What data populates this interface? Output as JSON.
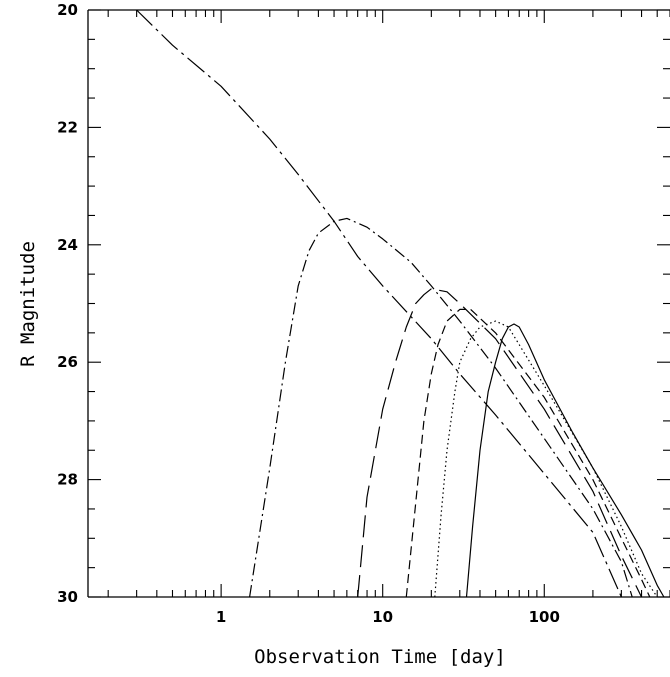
{
  "chart_data": {
    "type": "line",
    "title": "",
    "xlabel": "Observation Time [day]",
    "ylabel": "R Magnitude",
    "xscale": "log",
    "xlim": [
      0.15,
      600
    ],
    "ylim": [
      20,
      30
    ],
    "y_inverted": true,
    "grid": false,
    "legend": "none",
    "x_ticks": [
      1,
      10,
      100
    ],
    "x_tick_labels": [
      "1",
      "10",
      "100"
    ],
    "y_ticks": [
      20,
      22,
      24,
      26,
      28,
      30
    ],
    "y_tick_labels": [
      "20",
      "22",
      "24",
      "26",
      "28",
      "30"
    ],
    "series": [
      {
        "line_style": "long-dash-dot",
        "x": [
          0.3,
          0.5,
          1,
          2,
          3,
          5,
          7,
          10,
          20,
          30,
          50,
          100,
          200,
          300
        ],
        "y": [
          20.0,
          20.6,
          21.3,
          22.2,
          22.8,
          23.6,
          24.2,
          24.7,
          25.6,
          26.2,
          26.9,
          27.9,
          28.9,
          30.0
        ]
      },
      {
        "line_style": "dash-dot",
        "x": [
          1.5,
          2,
          2.5,
          3,
          3.5,
          4,
          5,
          6,
          8,
          10,
          15,
          20,
          30,
          50,
          100,
          200,
          300,
          350
        ],
        "y": [
          30.0,
          27.8,
          26.0,
          24.7,
          24.1,
          23.8,
          23.6,
          23.55,
          23.7,
          23.9,
          24.3,
          24.7,
          25.3,
          26.1,
          27.3,
          28.5,
          29.4,
          30.0
        ]
      },
      {
        "line_style": "long-dash",
        "x": [
          7,
          8,
          10,
          12,
          14,
          16,
          18,
          20,
          25,
          30,
          50,
          100,
          200,
          300,
          400
        ],
        "y": [
          30.0,
          28.3,
          26.8,
          26.0,
          25.4,
          25.0,
          24.85,
          24.75,
          24.8,
          25.0,
          25.6,
          26.8,
          28.2,
          29.3,
          30.0
        ]
      },
      {
        "line_style": "short-dash",
        "x": [
          14,
          16,
          18,
          20,
          22,
          25,
          30,
          35,
          50,
          100,
          200,
          300,
          400,
          450
        ],
        "y": [
          30.0,
          28.4,
          27.0,
          26.2,
          25.7,
          25.3,
          25.1,
          25.1,
          25.5,
          26.6,
          28.0,
          29.0,
          29.7,
          30.0
        ]
      },
      {
        "line_style": "dotted",
        "x": [
          21,
          23,
          25,
          28,
          30,
          35,
          40,
          50,
          60,
          100,
          200,
          300,
          400,
          500
        ],
        "y": [
          30.0,
          28.6,
          27.5,
          26.5,
          26.0,
          25.6,
          25.4,
          25.3,
          25.4,
          26.4,
          27.8,
          28.8,
          29.6,
          30.0
        ]
      },
      {
        "line_style": "solid",
        "x": [
          33,
          36,
          40,
          45,
          50,
          55,
          60,
          65,
          70,
          80,
          100,
          150,
          200,
          300,
          400,
          500,
          550
        ],
        "y": [
          30.0,
          28.8,
          27.5,
          26.5,
          26.0,
          25.6,
          25.4,
          25.35,
          25.4,
          25.7,
          26.3,
          27.2,
          27.8,
          28.6,
          29.2,
          29.8,
          30.0
        ]
      }
    ]
  }
}
